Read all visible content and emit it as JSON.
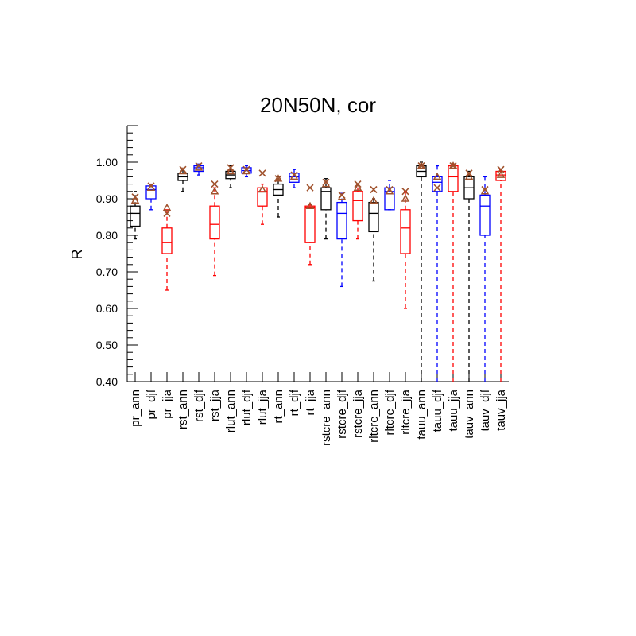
{
  "chart_data": {
    "type": "box",
    "title": "20N50N, cor",
    "xlabel": "",
    "ylabel": "R",
    "ylim": [
      0.4,
      1.1
    ],
    "yticks": [
      "0.40",
      "0.50",
      "0.60",
      "0.70",
      "0.80",
      "0.90",
      "1.00"
    ],
    "colors": {
      "ann": "#000000",
      "djf": "#0000ff",
      "jja": "#ff0000",
      "marker": "#a0522d"
    },
    "boxes": [
      {
        "label": "pr_ann",
        "season": "ann",
        "whisker_low": 0.79,
        "q1": 0.825,
        "median": 0.86,
        "q3": 0.88,
        "whisker_high": 0.92,
        "x_mark": 0.905,
        "tri_mark": 0.895
      },
      {
        "label": "pr_djf",
        "season": "djf",
        "whisker_low": 0.87,
        "q1": 0.9,
        "median": 0.925,
        "q3": 0.935,
        "whisker_high": 0.94,
        "x_mark": 0.935,
        "tri_mark": 0.93
      },
      {
        "label": "pr_jja",
        "season": "jja",
        "whisker_low": 0.65,
        "q1": 0.75,
        "median": 0.78,
        "q3": 0.82,
        "whisker_high": 0.87,
        "x_mark": 0.86,
        "tri_mark": 0.875
      },
      {
        "label": "rst_ann",
        "season": "ann",
        "whisker_low": 0.92,
        "q1": 0.95,
        "median": 0.96,
        "q3": 0.97,
        "whisker_high": 0.98,
        "x_mark": 0.98,
        "tri_mark": 0.975
      },
      {
        "label": "rst_djf",
        "season": "djf",
        "whisker_low": 0.965,
        "q1": 0.975,
        "median": 0.985,
        "q3": 0.99,
        "whisker_high": 0.995,
        "x_mark": 0.99,
        "tri_mark": 0.985
      },
      {
        "label": "rst_jja",
        "season": "jja",
        "whisker_low": 0.69,
        "q1": 0.79,
        "median": 0.83,
        "q3": 0.88,
        "whisker_high": 0.93,
        "x_mark": 0.94,
        "tri_mark": 0.92
      },
      {
        "label": "rlut_ann",
        "season": "ann",
        "whisker_low": 0.93,
        "q1": 0.955,
        "median": 0.965,
        "q3": 0.975,
        "whisker_high": 0.99,
        "x_mark": 0.985,
        "tri_mark": 0.975
      },
      {
        "label": "rlut_djf",
        "season": "djf",
        "whisker_low": 0.96,
        "q1": 0.97,
        "median": 0.977,
        "q3": 0.985,
        "whisker_high": 0.99,
        "x_mark": 0.98,
        "tri_mark": 0.975
      },
      {
        "label": "rlut_jja",
        "season": "jja",
        "whisker_low": 0.83,
        "q1": 0.88,
        "median": 0.92,
        "q3": 0.93,
        "whisker_high": 0.94,
        "x_mark": 0.97,
        "tri_mark": 0.925
      },
      {
        "label": "rt_ann",
        "season": "ann",
        "whisker_low": 0.85,
        "q1": 0.91,
        "median": 0.925,
        "q3": 0.94,
        "whisker_high": 0.96,
        "x_mark": 0.955,
        "tri_mark": 0.955
      },
      {
        "label": "rt_djf",
        "season": "djf",
        "whisker_low": 0.93,
        "q1": 0.945,
        "median": 0.96,
        "q3": 0.97,
        "whisker_high": 0.98,
        "x_mark": 0.965,
        "tri_mark": 0.96
      },
      {
        "label": "rt_jja",
        "season": "jja",
        "whisker_low": 0.72,
        "q1": 0.78,
        "median": 0.875,
        "q3": 0.88,
        "whisker_high": 0.885,
        "x_mark": 0.93,
        "tri_mark": 0.88
      },
      {
        "label": "rstcre_ann",
        "season": "ann",
        "whisker_low": 0.79,
        "q1": 0.87,
        "median": 0.92,
        "q3": 0.93,
        "whisker_high": 0.955,
        "x_mark": 0.945,
        "tri_mark": 0.94
      },
      {
        "label": "rstcre_djf",
        "season": "djf",
        "whisker_low": 0.66,
        "q1": 0.79,
        "median": 0.86,
        "q3": 0.89,
        "whisker_high": 0.915,
        "x_mark": 0.91,
        "tri_mark": 0.905
      },
      {
        "label": "rstcre_jja",
        "season": "jja",
        "whisker_low": 0.79,
        "q1": 0.84,
        "median": 0.895,
        "q3": 0.92,
        "whisker_high": 0.94,
        "x_mark": 0.94,
        "tri_mark": 0.93
      },
      {
        "label": "rltcre_ann",
        "season": "ann",
        "whisker_low": 0.675,
        "q1": 0.81,
        "median": 0.86,
        "q3": 0.89,
        "whisker_high": 0.9,
        "x_mark": 0.925,
        "tri_mark": 0.895
      },
      {
        "label": "rltcre_djf",
        "season": "djf",
        "whisker_low": 0.87,
        "q1": 0.87,
        "median": 0.92,
        "q3": 0.93,
        "whisker_high": 0.95,
        "x_mark": 0.925,
        "tri_mark": 0.92
      },
      {
        "label": "rltcre_jja",
        "season": "jja",
        "whisker_low": 0.6,
        "q1": 0.75,
        "median": 0.82,
        "q3": 0.87,
        "whisker_high": 0.92,
        "x_mark": 0.92,
        "tri_mark": 0.9
      },
      {
        "label": "tauu_ann",
        "season": "ann",
        "whisker_low": 0.4,
        "q1": 0.96,
        "median": 0.975,
        "q3": 0.99,
        "whisker_high": 1.0,
        "x_mark": 0.99,
        "tri_mark": 0.99
      },
      {
        "label": "tauu_djf",
        "season": "djf",
        "whisker_low": 0.4,
        "q1": 0.92,
        "median": 0.945,
        "q3": 0.96,
        "whisker_high": 0.99,
        "x_mark": 0.93,
        "tri_mark": 0.96
      },
      {
        "label": "tauu_jja",
        "season": "jja",
        "whisker_low": 0.4,
        "q1": 0.92,
        "median": 0.96,
        "q3": 0.99,
        "whisker_high": 0.995,
        "x_mark": 0.99,
        "tri_mark": 0.99
      },
      {
        "label": "tauv_ann",
        "season": "ann",
        "whisker_low": 0.4,
        "q1": 0.9,
        "median": 0.93,
        "q3": 0.96,
        "whisker_high": 0.975,
        "x_mark": 0.97,
        "tri_mark": 0.96
      },
      {
        "label": "tauv_djf",
        "season": "djf",
        "whisker_low": 0.4,
        "q1": 0.8,
        "median": 0.88,
        "q3": 0.91,
        "whisker_high": 0.96,
        "x_mark": 0.925,
        "tri_mark": 0.92
      },
      {
        "label": "tauv_jja",
        "season": "jja",
        "whisker_low": 0.4,
        "q1": 0.95,
        "median": 0.965,
        "q3": 0.975,
        "whisker_high": 0.98,
        "x_mark": 0.98,
        "tri_mark": 0.965
      }
    ]
  }
}
